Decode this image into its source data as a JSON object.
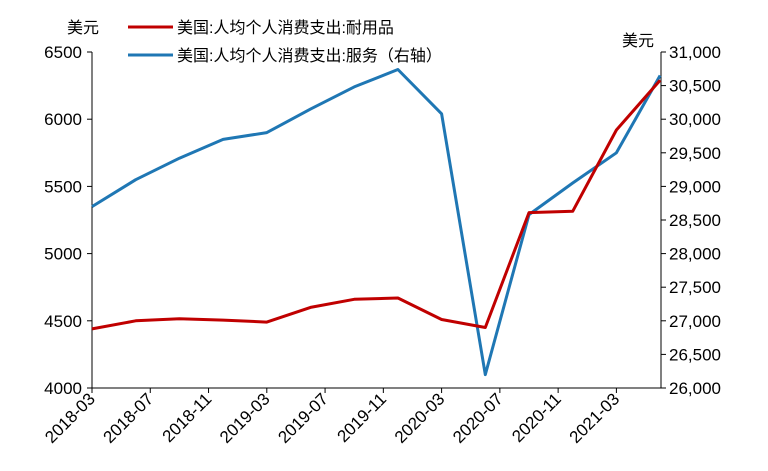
{
  "chart_data": {
    "type": "line",
    "x": [
      "2018-03",
      "2018-06",
      "2018-09",
      "2018-12",
      "2019-03",
      "2019-06",
      "2019-09",
      "2019-12",
      "2020-03",
      "2020-06",
      "2020-09",
      "2020-12",
      "2021-03",
      "2021-06"
    ],
    "x_tick_labels": [
      "2018-03",
      "2018-07",
      "2018-11",
      "2019-03",
      "2019-07",
      "2019-11",
      "2020-03",
      "2020-07",
      "2020-11",
      "2021-03"
    ],
    "y_left": {
      "unit": "美元",
      "ylim": [
        4000,
        6500
      ],
      "ticks": [
        "4000",
        "4500",
        "5000",
        "5500",
        "6000",
        "6500"
      ]
    },
    "y_right": {
      "unit": "美元",
      "ylim": [
        26000,
        31000
      ],
      "ticks": [
        "26,000",
        "26,500",
        "27,000",
        "27,500",
        "28,000",
        "28,500",
        "29,000",
        "29,500",
        "30,000",
        "30,500",
        "31,000"
      ]
    },
    "series": [
      {
        "name": "美国:人均个人消费支出:耐用品",
        "axis": "left",
        "color": "#c00000",
        "values": [
          4440,
          4500,
          4515,
          4505,
          4490,
          4600,
          4660,
          4670,
          4510,
          4450,
          5305,
          5315,
          5920,
          6290
        ]
      },
      {
        "name": "美国:人均个人消费支出:服务（右轴）",
        "axis": "right",
        "color": "#1f77b4",
        "values": [
          28700,
          29100,
          29420,
          29700,
          29800,
          30150,
          30480,
          30740,
          30080,
          26200,
          28580,
          29050,
          29500,
          30650
        ]
      }
    ],
    "grid": false,
    "legend": "top-left"
  }
}
